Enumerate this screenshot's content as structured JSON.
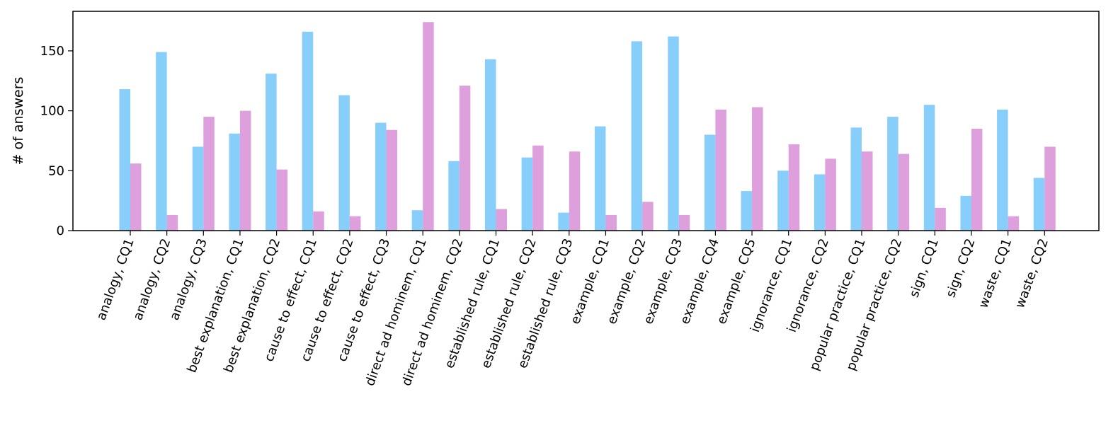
{
  "chart_data": {
    "type": "bar",
    "title": "",
    "xlabel": "",
    "ylabel": "# of answers",
    "ylim": [
      0,
      183
    ],
    "yticks": [
      0,
      50,
      100,
      150
    ],
    "grid": false,
    "legend": "none",
    "colors": [
      "#87cefa",
      "#dda0dd"
    ],
    "categories": [
      "analogy, CQ1",
      "analogy, CQ2",
      "analogy, CQ3",
      "best explanation, CQ1",
      "best explanation, CQ2",
      "cause to effect, CQ1",
      "cause to effect, CQ2",
      "cause to effect, CQ3",
      "direct ad hominem, CQ1",
      "direct ad hominem, CQ2",
      "established rule, CQ1",
      "established rule, CQ2",
      "established rule, CQ3",
      "example, CQ1",
      "example, CQ2",
      "example, CQ3",
      "example, CQ4",
      "example, CQ5",
      "ignorance, CQ1",
      "ignorance, CQ2",
      "popular practice, CQ1",
      "popular practice, CQ2",
      "sign, CQ1",
      "sign, CQ2",
      "waste, CQ1",
      "waste, CQ2"
    ],
    "series": [
      {
        "values": [
          118,
          149,
          70,
          81,
          131,
          166,
          113,
          90,
          17,
          58,
          143,
          61,
          15,
          87,
          158,
          162,
          80,
          33,
          50,
          47,
          86,
          95,
          105,
          29,
          101,
          44
        ]
      },
      {
        "values": [
          56,
          13,
          95,
          100,
          51,
          16,
          12,
          84,
          174,
          121,
          18,
          71,
          66,
          13,
          24,
          13,
          101,
          103,
          72,
          60,
          66,
          64,
          19,
          85,
          12,
          70
        ]
      }
    ]
  }
}
